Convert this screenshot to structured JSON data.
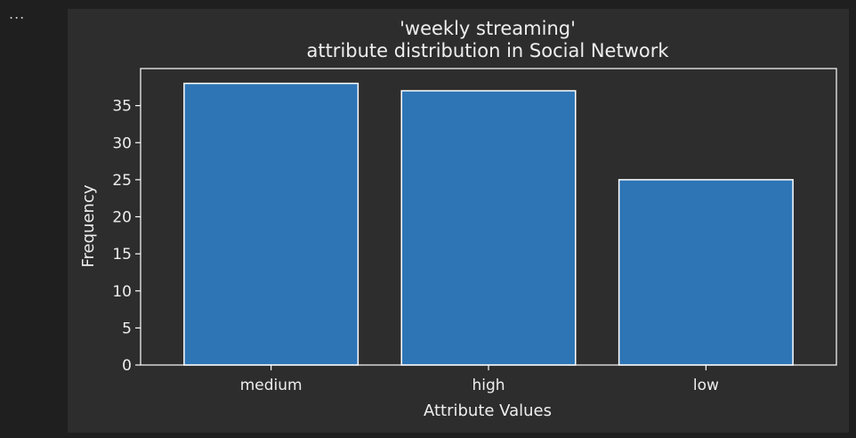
{
  "cell": {
    "menu_label": "..."
  },
  "chart_data": {
    "type": "bar",
    "title_line1": "'weekly streaming'",
    "title_line2": "attribute distribution in Social Network",
    "xlabel": "Attribute Values",
    "ylabel": "Frequency",
    "categories": [
      "medium",
      "high",
      "low"
    ],
    "values": [
      38,
      37,
      25
    ],
    "ylim": [
      0,
      40
    ],
    "yticks": [
      0,
      5,
      10,
      15,
      20,
      25,
      30,
      35
    ],
    "bar_color": "#2e75b6",
    "bar_edge_color": "#ffffff",
    "axes_color": "#ffffff",
    "text_color": "#eeeeee",
    "background": "#2d2d2d",
    "grid": false
  }
}
